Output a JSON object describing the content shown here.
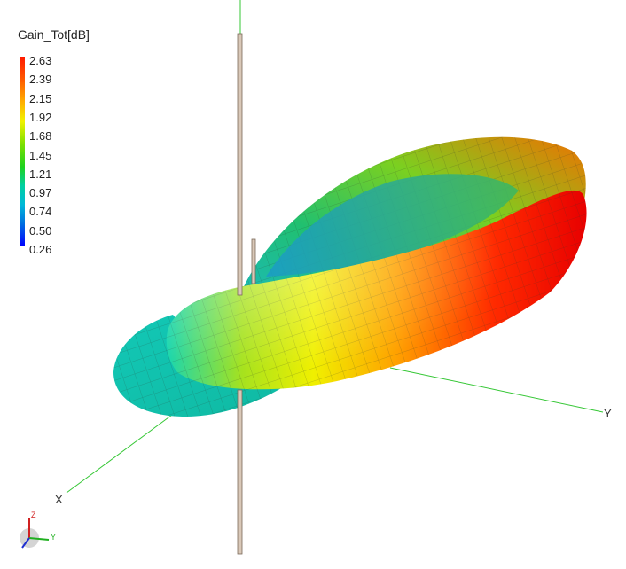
{
  "legend": {
    "title": "Gain_Tot[dB]",
    "ticks": [
      "2.63",
      "2.39",
      "2.15",
      "1.92",
      "1.68",
      "1.45",
      "1.21",
      "0.97",
      "0.74",
      "0.50",
      "0.26"
    ]
  },
  "axes": {
    "x_label": "X",
    "y_label": "Y",
    "triad_z": "Z",
    "triad_y": "Y"
  },
  "colors": {
    "max": "#ff1a00",
    "mid": "#f2f200",
    "min": "#0000ff",
    "axis_line": "#35c735"
  }
}
